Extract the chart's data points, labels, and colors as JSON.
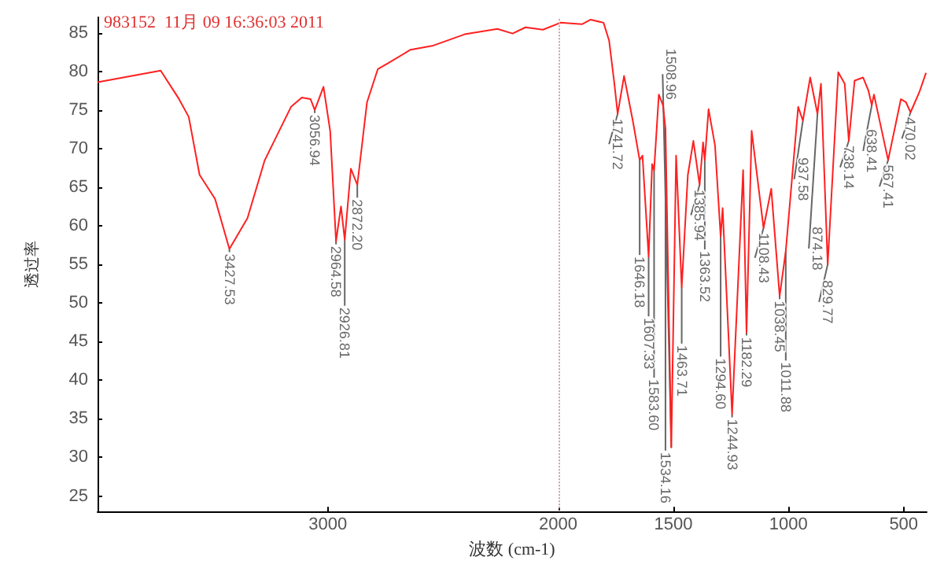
{
  "chart_data": {
    "type": "line",
    "xlabel": "波数 (cm-1)",
    "ylabel": "透过率",
    "x": [
      4000,
      3726,
      3650,
      3604,
      3557,
      3490,
      3427.53,
      3349,
      3274,
      3160,
      3113,
      3075,
      3056.94,
      3019,
      2990,
      2964.58,
      2943,
      2926.81,
      2900,
      2872.2,
      2830,
      2783,
      2736,
      2641,
      2547,
      2406,
      2264,
      2198,
      2142,
      2066,
      1990,
      1897,
      1859,
      1803,
      1779,
      1756,
      1741.72,
      1714,
      1676,
      1646.18,
      1634,
      1607.33,
      1592,
      1583.6,
      1563,
      1545,
      1534.16,
      1508.96,
      1488,
      1463.71,
      1437,
      1413,
      1385.94,
      1371,
      1363.52,
      1347,
      1319,
      1294.6,
      1286,
      1244.93,
      1197,
      1182.29,
      1160,
      1108.43,
      1075,
      1038.45,
      1011.88,
      958,
      937.58,
      906,
      874.18,
      859,
      829.77,
      784,
      756,
      738.14,
      713,
      676,
      653,
      638.41,
      629,
      567.41,
      512,
      490,
      470.02,
      432,
      403
    ],
    "values": [
      78.6,
      80.1,
      76.6,
      74.1,
      66.6,
      63.5,
      57,
      61,
      68.5,
      75.4,
      76.6,
      76.4,
      75,
      78,
      72.3,
      58,
      62.5,
      58.2,
      67.4,
      65.3,
      76,
      80.3,
      81.1,
      82.8,
      83.3,
      84.8,
      85.5,
      84.9,
      85.7,
      85.4,
      86.3,
      86.1,
      86.7,
      86.3,
      84,
      78.4,
      74.5,
      79.4,
      73.6,
      68.5,
      69.1,
      56,
      68,
      67.2,
      77,
      75.6,
      72.6,
      31.3,
      69.1,
      52,
      66.6,
      71,
      65.3,
      70.8,
      68.5,
      75.1,
      70.4,
      58.6,
      62.3,
      35.6,
      67.2,
      46.2,
      72.3,
      59.7,
      64.8,
      50.9,
      56.7,
      75.4,
      73.6,
      79.2,
      74.5,
      78.4,
      55,
      79.9,
      78.4,
      71,
      78.8,
      79.2,
      77.5,
      75.6,
      77,
      68.5,
      76.4,
      76,
      74.7,
      77.3,
      79.8
    ],
    "color": "#ff2020",
    "xlim": [
      4000,
      400
    ],
    "ylim": [
      23,
      87
    ],
    "xticks": [
      3000,
      2000,
      1500,
      1000,
      500
    ],
    "yticks": [
      25,
      30,
      35,
      40,
      45,
      50,
      55,
      60,
      65,
      70,
      75,
      80,
      85
    ],
    "grid": false,
    "marker": "none",
    "line_style": "solid",
    "ref_lines": [
      {
        "axis": "x",
        "value": 2000,
        "color": "#c8a0a0",
        "line_style": "dotted"
      }
    ],
    "annotations": [
      "983152  11月 09 16:36:03 2011",
      {
        "text": "3427.53",
        "x": 3427.53,
        "y": 57
      },
      {
        "text": "3056.94",
        "x": 3056.94,
        "y": 75
      },
      {
        "text": "2964.58",
        "x": 2964.58,
        "y": 58
      },
      {
        "text": "2926.81",
        "x": 2926.81,
        "y": 58.2
      },
      {
        "text": "2872.20",
        "x": 2872.2,
        "y": 65.3
      },
      {
        "text": "1741.72",
        "x": 1741.72,
        "y": 74.5
      },
      {
        "text": "1646.18",
        "x": 1646.18,
        "y": 68.5
      },
      {
        "text": "1607.33",
        "x": 1607.33,
        "y": 56
      },
      {
        "text": "1583.60",
        "x": 1583.6,
        "y": 67.2
      },
      {
        "text": "1534.16",
        "x": 1534.16,
        "y": 72.6
      },
      {
        "text": "1508.96",
        "x": 1508.96,
        "y": 31.3
      },
      {
        "text": "1463.71",
        "x": 1463.71,
        "y": 52
      },
      {
        "text": "1385.94",
        "x": 1385.94,
        "y": 65.3
      },
      {
        "text": "1363.52",
        "x": 1363.52,
        "y": 68.5
      },
      {
        "text": "1294.60",
        "x": 1294.6,
        "y": 58.6
      },
      {
        "text": "1244.93",
        "x": 1244.93,
        "y": 35.6
      },
      {
        "text": "1182.29",
        "x": 1182.29,
        "y": 46.2
      },
      {
        "text": "1108.43",
        "x": 1108.43,
        "y": 59.7
      },
      {
        "text": "1038.45",
        "x": 1038.45,
        "y": 50.9
      },
      {
        "text": "1011.88",
        "x": 1011.88,
        "y": 56.7
      },
      {
        "text": "937.58",
        "x": 937.58,
        "y": 73.6
      },
      {
        "text": "874.18",
        "x": 874.18,
        "y": 74.5
      },
      {
        "text": "829.77",
        "x": 829.77,
        "y": 55
      },
      {
        "text": "738.14",
        "x": 738.14,
        "y": 71
      },
      {
        "text": "638.41",
        "x": 638.41,
        "y": 75.6
      },
      {
        "text": "567.41",
        "x": 567.41,
        "y": 68.5
      },
      {
        "text": "470.02",
        "x": 470.02,
        "y": 74.7
      }
    ]
  }
}
